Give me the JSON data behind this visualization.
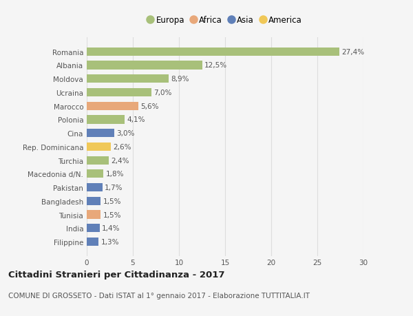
{
  "countries": [
    "Romania",
    "Albania",
    "Moldova",
    "Ucraina",
    "Marocco",
    "Polonia",
    "Cina",
    "Rep. Dominicana",
    "Turchia",
    "Macedonia d/N.",
    "Pakistan",
    "Bangladesh",
    "Tunisia",
    "India",
    "Filippine"
  ],
  "values": [
    27.4,
    12.5,
    8.9,
    7.0,
    5.6,
    4.1,
    3.0,
    2.6,
    2.4,
    1.8,
    1.7,
    1.5,
    1.5,
    1.4,
    1.3
  ],
  "labels": [
    "27,4%",
    "12,5%",
    "8,9%",
    "7,0%",
    "5,6%",
    "4,1%",
    "3,0%",
    "2,6%",
    "2,4%",
    "1,8%",
    "1,7%",
    "1,5%",
    "1,5%",
    "1,4%",
    "1,3%"
  ],
  "continents": [
    "Europa",
    "Europa",
    "Europa",
    "Europa",
    "Africa",
    "Europa",
    "Asia",
    "America",
    "Europa",
    "Europa",
    "Asia",
    "Asia",
    "Africa",
    "Asia",
    "Asia"
  ],
  "colors": {
    "Europa": "#a8c07a",
    "Africa": "#e8a87a",
    "Asia": "#6080b8",
    "America": "#f0c858"
  },
  "xlim": [
    0,
    30
  ],
  "xticks": [
    0,
    5,
    10,
    15,
    20,
    25,
    30
  ],
  "title": "Cittadini Stranieri per Cittadinanza - 2017",
  "subtitle": "COMUNE DI GROSSETO - Dati ISTAT al 1° gennaio 2017 - Elaborazione TUTTITALIA.IT",
  "bg_color": "#f5f5f5",
  "grid_color": "#dddddd",
  "bar_height": 0.62,
  "label_fontsize": 7.5,
  "tick_fontsize": 7.5,
  "title_fontsize": 9.5,
  "subtitle_fontsize": 7.5,
  "legend_labels": [
    "Europa",
    "Africa",
    "Asia",
    "America"
  ]
}
